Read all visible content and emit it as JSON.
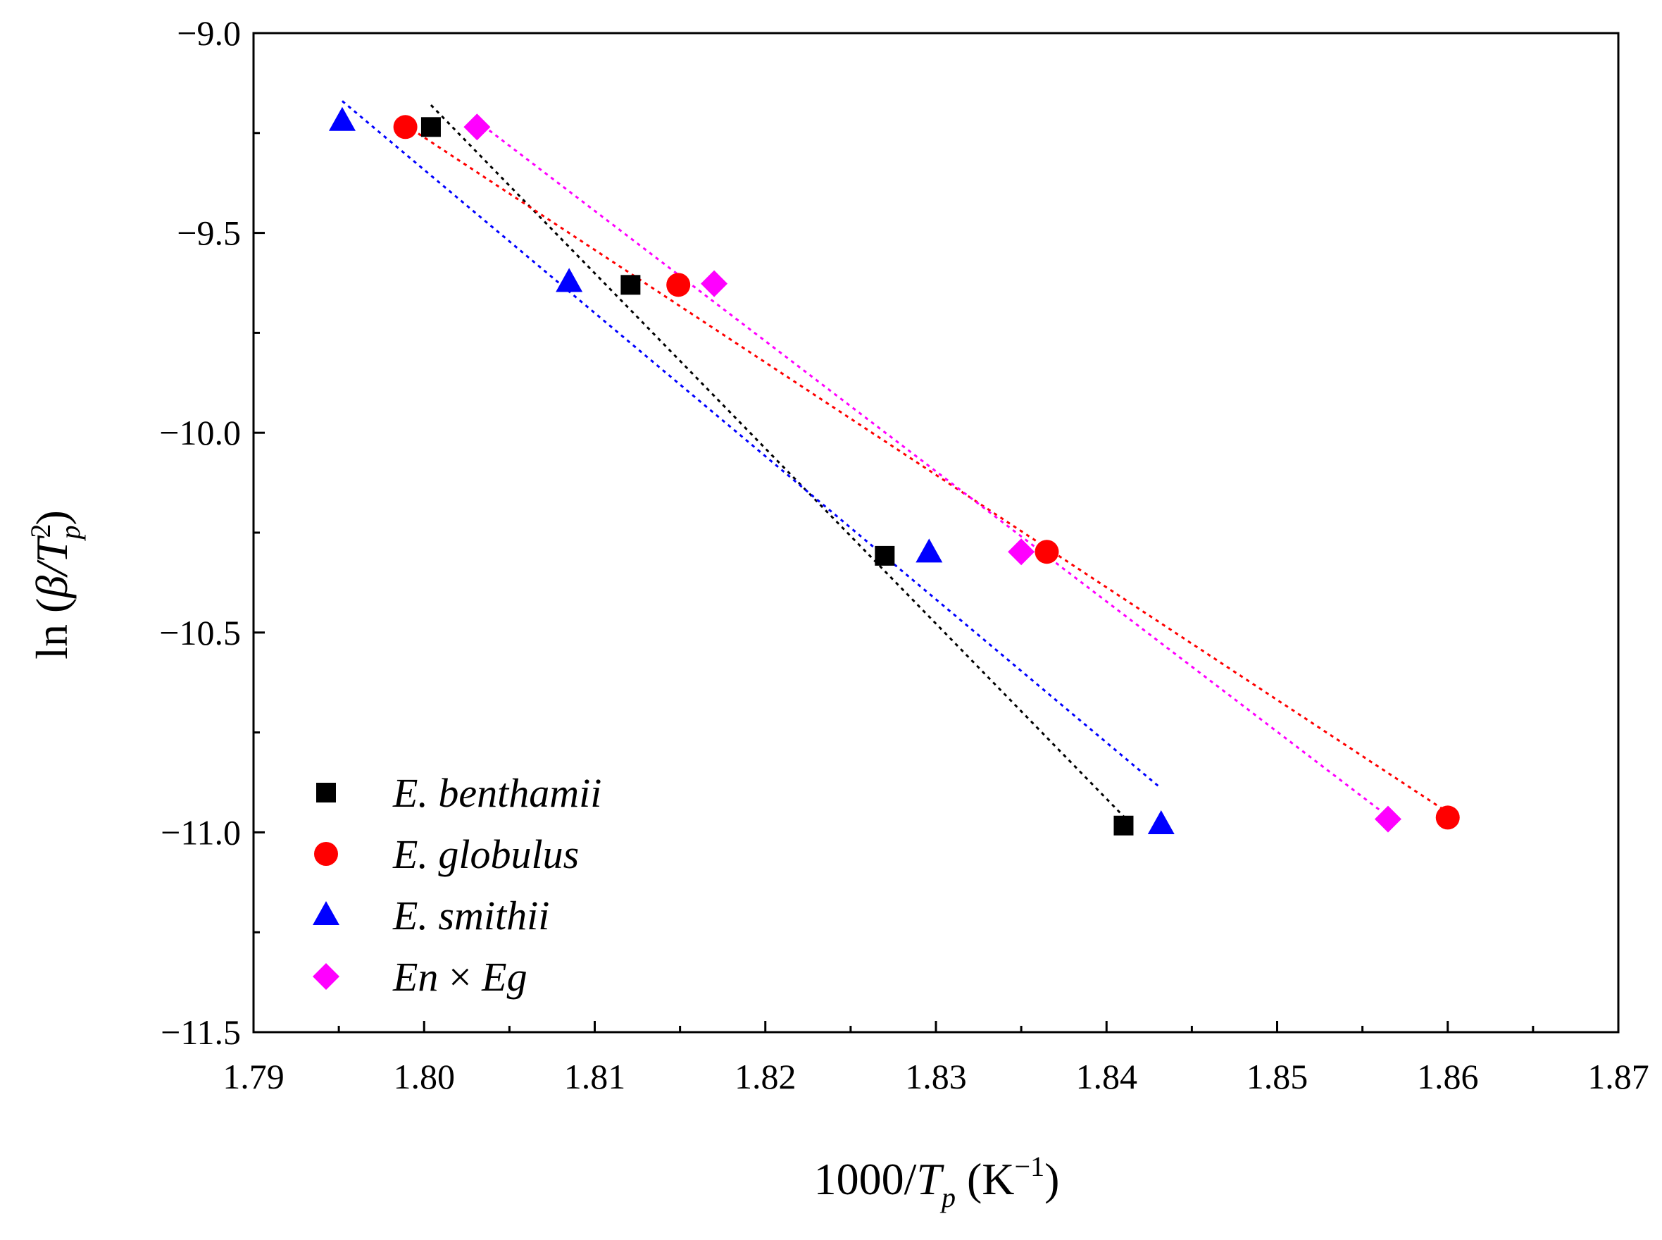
{
  "chart_data": {
    "type": "scatter",
    "title": "",
    "xlabel": {
      "main": "1000/",
      "var": "T",
      "sub": "p",
      "unit_open": " (K",
      "unit_sup": "−1",
      "unit_close": ")"
    },
    "ylabel": {
      "pre": "ln (",
      "beta": "β",
      "slash": "/",
      "var": "T",
      "sup": "2",
      "sub": "p",
      "close": ")"
    },
    "xlim": [
      1.79,
      1.87
    ],
    "ylim": [
      -11.5,
      -9.0
    ],
    "xticks": [
      1.79,
      1.8,
      1.81,
      1.82,
      1.83,
      1.84,
      1.85,
      1.86,
      1.87
    ],
    "xtick_labels": [
      "1.79",
      "1.80",
      "1.81",
      "1.82",
      "1.83",
      "1.84",
      "1.85",
      "1.86",
      "1.87"
    ],
    "yticks": [
      -9.0,
      -9.5,
      -10.0,
      -10.5,
      -11.0,
      -11.5
    ],
    "ytick_labels": [
      "−9.0",
      "−9.5",
      "−10.0",
      "−10.5",
      "−11.0",
      "−11.5"
    ],
    "grid": false,
    "legend_position": "bottom-left",
    "series": [
      {
        "name": "E. benthamii",
        "label_parts": [
          "E. benthamii"
        ],
        "marker": "square",
        "color": "#000000",
        "x": [
          1.8004,
          1.8121,
          1.827,
          1.841
        ],
        "y": [
          -9.235,
          -9.63,
          -10.308,
          -10.983
        ],
        "fit": {
          "x": [
            1.8004,
            1.841
          ],
          "y": [
            -9.18,
            -10.96
          ]
        }
      },
      {
        "name": "E. globulus",
        "label_parts": [
          "E. globulus"
        ],
        "marker": "circle",
        "color": "#ff0000",
        "x": [
          1.7989,
          1.8149,
          1.8365,
          1.86
        ],
        "y": [
          -9.235,
          -9.63,
          -10.298,
          -10.963
        ],
        "fit": {
          "x": [
            1.7989,
            1.86
          ],
          "y": [
            -9.23,
            -10.95
          ]
        }
      },
      {
        "name": "E. smithii",
        "label_parts": [
          "E. smithii"
        ],
        "marker": "triangle",
        "color": "#0000ff",
        "x": [
          1.7952,
          1.8085,
          1.8296,
          1.8432
        ],
        "y": [
          -9.22,
          -9.623,
          -10.3,
          -10.98
        ],
        "fit": {
          "x": [
            1.7952,
            1.8432
          ],
          "y": [
            -9.17,
            -10.89
          ]
        }
      },
      {
        "name": "En × Eg",
        "label_parts": [
          "En",
          " × ",
          "Eg"
        ],
        "marker": "diamond",
        "color": "#ff00ff",
        "x": [
          1.8031,
          1.817,
          1.835,
          1.8565
        ],
        "y": [
          -9.235,
          -9.627,
          -10.298,
          -10.967
        ],
        "fit": {
          "x": [
            1.8031,
            1.8565
          ],
          "y": [
            -9.22,
            -10.96
          ]
        }
      }
    ]
  }
}
